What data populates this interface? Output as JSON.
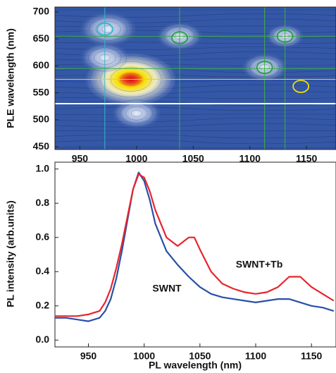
{
  "chart_data": [
    {
      "type": "contour",
      "ylabel": "PLE wavelength (nm)",
      "xlim": [
        928,
        1176
      ],
      "ylim": [
        445,
        709
      ],
      "xticks": [
        950,
        1000,
        1050,
        1100,
        1150
      ],
      "yticks": [
        450,
        500,
        550,
        600,
        650,
        700
      ],
      "peaks": [
        {
          "x": 995,
          "y": 575,
          "intensity": 1.0
        },
        {
          "x": 1000,
          "y": 512,
          "intensity": 0.45
        },
        {
          "x": 975,
          "y": 668,
          "intensity": 0.55
        },
        {
          "x": 972,
          "y": 615,
          "intensity": 0.45
        },
        {
          "x": 1038,
          "y": 655,
          "intensity": 0.4
        },
        {
          "x": 1113,
          "y": 597,
          "intensity": 0.4
        },
        {
          "x": 1131,
          "y": 655,
          "intensity": 0.3
        }
      ],
      "vlines": [
        {
          "x": 972,
          "color": "#2fb8c8"
        },
        {
          "x": 1038,
          "color": "#3cb043"
        },
        {
          "x": 1113,
          "color": "#3cb043"
        },
        {
          "x": 1131,
          "color": "#3cb043"
        }
      ],
      "hlines": [
        {
          "y": 655,
          "color": "#3cb043"
        },
        {
          "y": 595,
          "color": "#3cb043"
        },
        {
          "y": 575,
          "color": "#e8d800"
        },
        {
          "y": 530,
          "color": "#ffffff"
        }
      ],
      "markers": [
        {
          "x": 972,
          "y": 668,
          "color": "#2fb8c8"
        },
        {
          "x": 1038,
          "y": 652,
          "color": "#22a040"
        },
        {
          "x": 1113,
          "y": 597,
          "color": "#22a040"
        },
        {
          "x": 1131,
          "y": 655,
          "color": "#22a040"
        },
        {
          "x": 1145,
          "y": 562,
          "color": "#f0e000"
        }
      ]
    },
    {
      "type": "line",
      "xlabel": "PL wavelength (nm)",
      "ylabel": "PL intensity (arb.units)",
      "xlim": [
        920,
        1172
      ],
      "ylim": [
        -0.04,
        1.04
      ],
      "xticks": [
        950,
        1000,
        1050,
        1100,
        1150
      ],
      "yticks": [
        {
          "value": 0,
          "label": "0.0"
        },
        0.2,
        0.4,
        0.6,
        0.8,
        {
          "value": 1,
          "label": "1.0"
        }
      ],
      "x": [
        920,
        930,
        940,
        950,
        960,
        965,
        970,
        975,
        980,
        985,
        990,
        995,
        1000,
        1005,
        1010,
        1020,
        1030,
        1040,
        1045,
        1050,
        1060,
        1070,
        1080,
        1090,
        1100,
        1110,
        1120,
        1130,
        1140,
        1150,
        1160,
        1170
      ],
      "series": [
        {
          "name": "SWNT",
          "color": "#2a4fa8",
          "values": [
            0.13,
            0.13,
            0.12,
            0.11,
            0.13,
            0.17,
            0.24,
            0.36,
            0.52,
            0.7,
            0.88,
            0.98,
            0.93,
            0.82,
            0.68,
            0.52,
            0.44,
            0.37,
            0.34,
            0.31,
            0.27,
            0.25,
            0.24,
            0.23,
            0.22,
            0.23,
            0.24,
            0.24,
            0.22,
            0.2,
            0.19,
            0.17
          ]
        },
        {
          "name": "SWNT+Tb",
          "color": "#e8242c",
          "values": [
            0.14,
            0.14,
            0.14,
            0.15,
            0.17,
            0.22,
            0.3,
            0.42,
            0.56,
            0.72,
            0.88,
            0.97,
            0.95,
            0.87,
            0.76,
            0.6,
            0.55,
            0.6,
            0.6,
            0.53,
            0.4,
            0.33,
            0.3,
            0.28,
            0.27,
            0.28,
            0.31,
            0.37,
            0.37,
            0.31,
            0.27,
            0.23
          ]
        }
      ]
    }
  ]
}
